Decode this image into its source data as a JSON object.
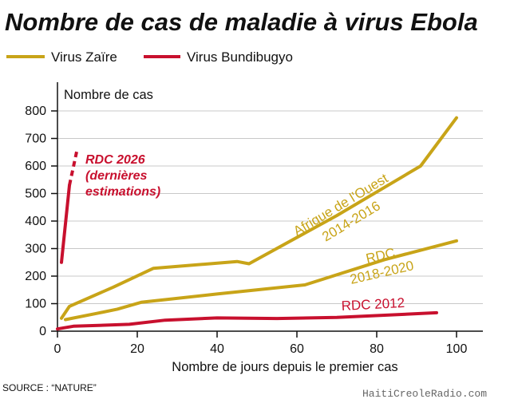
{
  "chart_data": {
    "type": "line",
    "title": "Nombre de cas de maladie à virus Ebola",
    "ylabel": "Nombre de cas",
    "xlabel": "Nombre de jours depuis le premier cas",
    "xlim": [
      0,
      100
    ],
    "ylim": [
      0,
      800
    ],
    "xticks": [
      0,
      20,
      40,
      60,
      80,
      100
    ],
    "yticks": [
      0,
      100,
      200,
      300,
      400,
      500,
      600,
      700,
      800
    ],
    "legend": {
      "placement": "top-left",
      "entries": [
        {
          "name": "Virus Zaïre",
          "color": "#C8A418"
        },
        {
          "name": "Virus Bundibugyo",
          "color": "#C8102E"
        }
      ]
    },
    "series": [
      {
        "virus": "Virus Zaïre",
        "color": "#C8A418",
        "labels": [
          "Afrique de l'Ouest",
          "2014-2016"
        ],
        "x": [
          1,
          3,
          14,
          24,
          45,
          48,
          70,
          91,
          100
        ],
        "y": [
          47,
          90,
          160,
          228,
          253,
          245,
          420,
          600,
          775
        ]
      },
      {
        "virus": "Virus Zaïre",
        "color": "#C8A418",
        "labels": [
          "RDC",
          "2018-2020"
        ],
        "x": [
          2,
          10,
          15,
          21,
          40,
          62,
          82,
          100
        ],
        "y": [
          42,
          65,
          80,
          105,
          135,
          168,
          260,
          328
        ]
      },
      {
        "virus": "Virus Bundibugyo",
        "color": "#C8102E",
        "labels": [
          "RDC 2012"
        ],
        "x": [
          0,
          4,
          18,
          27,
          40,
          55,
          70,
          95
        ],
        "y": [
          8,
          18,
          25,
          40,
          48,
          46,
          50,
          67
        ]
      },
      {
        "virus": "Virus Bundibugyo",
        "color": "#C8102E",
        "labels": [
          "RDC 2026",
          "(dernières",
          "estimations)"
        ],
        "x": [
          1,
          3
        ],
        "y": [
          250,
          530
        ],
        "estimate": {
          "x": [
            3,
            5
          ],
          "y": [
            530,
            665
          ]
        }
      }
    ]
  },
  "source": "SOURCE : “NATURE”",
  "watermark": "HaitiCreoleRadio.com"
}
